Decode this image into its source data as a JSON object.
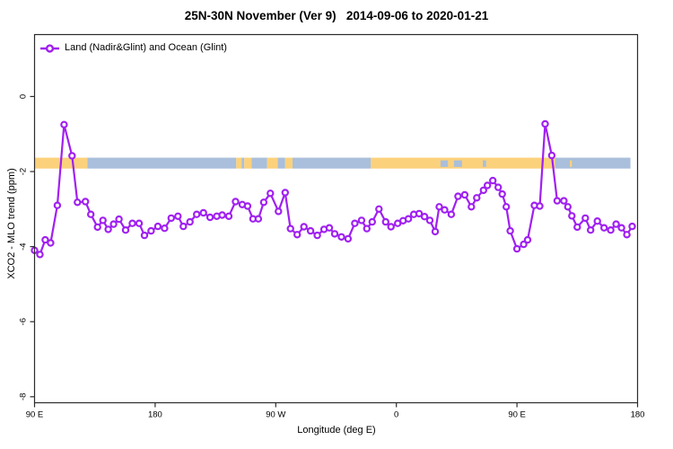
{
  "title": "25N-30N November (Ver 9)   2014-09-06 to 2020-01-21",
  "legend": {
    "label": "Land (Nadir&Glint) and Ocean (Glint)"
  },
  "colors": {
    "series": "#A020F0",
    "ocean_band": "#A9BFDB",
    "land_band": "#FCD17C",
    "axis": "#2B2B2B"
  },
  "chart_data": {
    "type": "line",
    "title": "25N-30N November (Ver 9)   2014-09-06 to 2020-01-21",
    "xlabel": "Longitude (deg E)",
    "ylabel": "XCO2 - MLO trend (ppm)",
    "xlim": [
      90,
      540
    ],
    "ylim": [
      -8.16,
      1.65
    ],
    "grid": false,
    "legend_position": "top-left-inside",
    "x_ticks": [
      {
        "value": 90,
        "label": "90 E"
      },
      {
        "value": 180,
        "label": "180"
      },
      {
        "value": 270,
        "label": "90 W"
      },
      {
        "value": 360,
        "label": "0"
      },
      {
        "value": 450,
        "label": "90 E"
      },
      {
        "value": 540,
        "label": "180"
      }
    ],
    "y_ticks": [
      {
        "value": 0,
        "label": "0"
      },
      {
        "value": -2,
        "label": "-2"
      },
      {
        "value": -4,
        "label": "-4"
      },
      {
        "value": -6,
        "label": "-6"
      },
      {
        "value": -8,
        "label": "-8"
      }
    ],
    "map_band": {
      "description": "land/ocean strip for 25N-30N drawn across the plot",
      "y_top": -1.63,
      "y_bottom": -1.92,
      "segments": [
        {
          "from": 90.3,
          "to": 129.5,
          "type": "land"
        },
        {
          "from": 129.5,
          "to": 240.5,
          "type": "ocean"
        },
        {
          "from": 240.5,
          "to": 244.5,
          "type": "land"
        },
        {
          "from": 244.5,
          "to": 246.5,
          "type": "ocean"
        },
        {
          "from": 246.5,
          "to": 252.0,
          "type": "land"
        },
        {
          "from": 252.0,
          "to": 263.5,
          "type": "ocean"
        },
        {
          "from": 263.5,
          "to": 271.5,
          "type": "land"
        },
        {
          "from": 271.5,
          "to": 277.0,
          "type": "ocean"
        },
        {
          "from": 277.0,
          "to": 282.5,
          "type": "land"
        },
        {
          "from": 282.5,
          "to": 341.0,
          "type": "ocean"
        },
        {
          "from": 341.0,
          "to": 478.5,
          "type": "land"
        },
        {
          "from": 478.5,
          "to": 534.7,
          "type": "ocean"
        }
      ],
      "specks": [
        {
          "from": 393.0,
          "to": 398.5,
          "type": "ocean"
        },
        {
          "from": 403.0,
          "to": 409.0,
          "type": "ocean"
        },
        {
          "from": 424.5,
          "to": 427.0,
          "type": "ocean"
        },
        {
          "from": 489.5,
          "to": 491.0,
          "type": "land"
        }
      ]
    },
    "series": [
      {
        "name": "Land (Nadir&Glint) and Ocean (Glint)",
        "marker": "open-circle",
        "points": [
          [
            90,
            -4.1
          ],
          [
            94,
            -4.21
          ],
          [
            98,
            -3.82
          ],
          [
            102,
            -3.9
          ],
          [
            107,
            -2.9
          ],
          [
            112,
            -0.75
          ],
          [
            118,
            -1.58
          ],
          [
            122,
            -2.82
          ],
          [
            128,
            -2.8
          ],
          [
            132,
            -3.14
          ],
          [
            137,
            -3.48
          ],
          [
            141,
            -3.3
          ],
          [
            145,
            -3.54
          ],
          [
            149,
            -3.4
          ],
          [
            153,
            -3.27
          ],
          [
            158,
            -3.56
          ],
          [
            163,
            -3.38
          ],
          [
            168,
            -3.38
          ],
          [
            172,
            -3.7
          ],
          [
            177,
            -3.58
          ],
          [
            182,
            -3.46
          ],
          [
            187,
            -3.51
          ],
          [
            192,
            -3.24
          ],
          [
            197,
            -3.19
          ],
          [
            201,
            -3.46
          ],
          [
            206,
            -3.34
          ],
          [
            211,
            -3.14
          ],
          [
            216,
            -3.1
          ],
          [
            221,
            -3.22
          ],
          [
            226,
            -3.19
          ],
          [
            230,
            -3.16
          ],
          [
            235,
            -3.19
          ],
          [
            240,
            -2.8
          ],
          [
            245,
            -2.88
          ],
          [
            249,
            -2.92
          ],
          [
            253,
            -3.26
          ],
          [
            257,
            -3.26
          ],
          [
            261,
            -2.82
          ],
          [
            266,
            -2.58
          ],
          [
            272,
            -3.06
          ],
          [
            277,
            -2.56
          ],
          [
            281,
            -3.52
          ],
          [
            286,
            -3.68
          ],
          [
            291,
            -3.47
          ],
          [
            296,
            -3.58
          ],
          [
            301,
            -3.7
          ],
          [
            306,
            -3.54
          ],
          [
            310,
            -3.5
          ],
          [
            314,
            -3.66
          ],
          [
            319,
            -3.74
          ],
          [
            324,
            -3.79
          ],
          [
            329,
            -3.38
          ],
          [
            334,
            -3.3
          ],
          [
            338,
            -3.52
          ],
          [
            342,
            -3.34
          ],
          [
            347,
            -3.0
          ],
          [
            352,
            -3.34
          ],
          [
            356,
            -3.47
          ],
          [
            361,
            -3.38
          ],
          [
            365,
            -3.31
          ],
          [
            369,
            -3.26
          ],
          [
            373,
            -3.14
          ],
          [
            377,
            -3.12
          ],
          [
            381,
            -3.2
          ],
          [
            385,
            -3.3
          ],
          [
            389,
            -3.6
          ],
          [
            392,
            -2.94
          ],
          [
            396,
            -3.02
          ],
          [
            401,
            -3.14
          ],
          [
            406,
            -2.66
          ],
          [
            411,
            -2.62
          ],
          [
            416,
            -2.94
          ],
          [
            420,
            -2.7
          ],
          [
            425,
            -2.5
          ],
          [
            428,
            -2.37
          ],
          [
            432,
            -2.24
          ],
          [
            436,
            -2.42
          ],
          [
            439,
            -2.6
          ],
          [
            442,
            -2.94
          ],
          [
            445,
            -3.58
          ],
          [
            450,
            -4.06
          ],
          [
            455,
            -3.94
          ],
          [
            458,
            -3.82
          ],
          [
            463,
            -2.9
          ],
          [
            467,
            -2.92
          ],
          [
            471,
            -0.73
          ],
          [
            476,
            -1.57
          ],
          [
            480,
            -2.78
          ],
          [
            485,
            -2.78
          ],
          [
            488,
            -2.94
          ],
          [
            491,
            -3.18
          ],
          [
            495,
            -3.48
          ],
          [
            501,
            -3.24
          ],
          [
            505,
            -3.56
          ],
          [
            510,
            -3.32
          ],
          [
            515,
            -3.5
          ],
          [
            520,
            -3.56
          ],
          [
            524,
            -3.4
          ],
          [
            528,
            -3.5
          ],
          [
            532,
            -3.68
          ],
          [
            536,
            -3.46
          ]
        ]
      }
    ]
  }
}
